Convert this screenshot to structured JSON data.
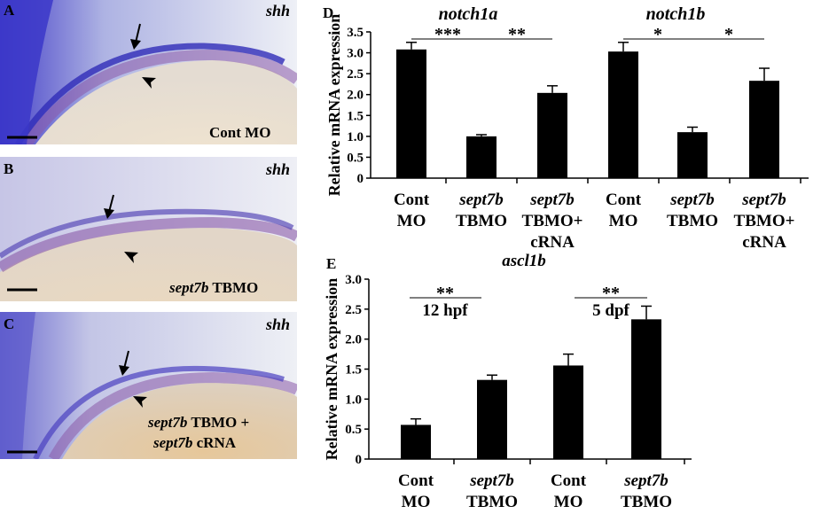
{
  "panels": {
    "A": {
      "letter": "A",
      "gene": "shh",
      "condition": "Cont MO"
    },
    "B": {
      "letter": "B",
      "gene": "shh",
      "condition_italic": "sept7b",
      "condition_rest": " TBMO"
    },
    "C": {
      "letter": "C",
      "gene": "shh",
      "line1_italic": "sept7b",
      "line1_rest": " TBMO +",
      "line2_italic": "sept7b",
      "line2_rest": " cRNA"
    }
  },
  "colors": {
    "stain_blue": "#3a35c8",
    "stain_purple": "#8a5aa8",
    "yolk": "#e7d9c4",
    "bar": "#000000"
  },
  "chart_data": [
    {
      "panel": "D",
      "type": "bar",
      "ylabel": "Relative mRNA expression",
      "ylim": [
        0,
        3.5
      ],
      "yticks": [
        "0",
        "0.5",
        "1.0",
        "1.5",
        "2.0",
        "2.5",
        "3.0",
        "3.5"
      ],
      "categories": [
        {
          "line1": "Cont",
          "line2": "MO",
          "line3": "",
          "italic_line1": false
        },
        {
          "line1": "sept7b",
          "line2": "TBMO",
          "line3": "",
          "italic_line1": true
        },
        {
          "line1": "sept7b",
          "line2": "TBMO+",
          "line3": "cRNA",
          "italic_line1": true
        },
        {
          "line1": "Cont",
          "line2": "MO",
          "line3": "",
          "italic_line1": false
        },
        {
          "line1": "sept7b",
          "line2": "TBMO",
          "line3": "",
          "italic_line1": true
        },
        {
          "line1": "sept7b",
          "line2": "TBMO+",
          "line3": "cRNA",
          "italic_line1": true
        }
      ],
      "values": [
        3.08,
        1.0,
        2.04,
        3.03,
        1.1,
        2.33
      ],
      "errors": [
        0.17,
        0.04,
        0.17,
        0.22,
        0.12,
        0.3
      ],
      "groups": [
        {
          "label": "notch1a"
        },
        {
          "label": "notch1b"
        }
      ],
      "significance": [
        "***",
        "**",
        "*",
        "*"
      ]
    },
    {
      "panel": "E",
      "type": "bar",
      "title": "ascl1b",
      "ylabel": "Relative mRNA expression",
      "ylim": [
        0,
        3.0
      ],
      "yticks": [
        "0",
        "0.5",
        "1.0",
        "1.5",
        "2.0",
        "2.5",
        "3.0"
      ],
      "categories": [
        {
          "line1": "Cont",
          "line2": "MO",
          "italic_line1": false
        },
        {
          "line1": "sept7b",
          "line2": "TBMO",
          "italic_line1": true
        },
        {
          "line1": "Cont",
          "line2": "MO",
          "italic_line1": false
        },
        {
          "line1": "sept7b",
          "line2": "TBMO",
          "italic_line1": true
        }
      ],
      "values": [
        0.57,
        1.32,
        1.56,
        2.33
      ],
      "errors": [
        0.1,
        0.08,
        0.19,
        0.22
      ],
      "groups": [
        {
          "label": "12 hpf"
        },
        {
          "label": "5 dpf"
        }
      ],
      "significance": [
        "**",
        "**"
      ]
    }
  ]
}
